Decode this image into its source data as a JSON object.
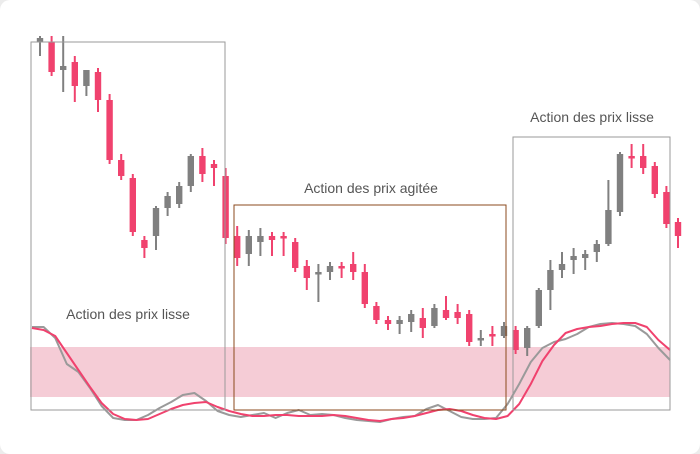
{
  "colors": {
    "background": "#ececec",
    "panel": "#ffffff",
    "up": "#808080",
    "down": "#f0426e",
    "zone_fill": "#f5ccd6",
    "box_gray": "#9a9a9a",
    "box_brown": "#8b4a1c",
    "fast_line": "#f0426e",
    "slow_line": "#9a9a9a",
    "label": "#555555"
  },
  "annotations": {
    "left_box_label": "Action des prix lisse",
    "middle_box_label": "Action des prix agitée",
    "right_box_label": "Action des prix lisse"
  },
  "chart_data": [
    {
      "type": "candlestick",
      "title": "",
      "xlabel": "",
      "ylabel": "",
      "grid": false,
      "ylim": [
        40,
        140
      ],
      "bars": [
        {
          "o": 132.5,
          "h": 134,
          "c": 133.5,
          "l": 129,
          "dir": "up"
        },
        {
          "o": 132.5,
          "h": 134,
          "c": 125,
          "l": 124,
          "dir": "down"
        },
        {
          "o": 125.5,
          "h": 134,
          "c": 126.5,
          "l": 120,
          "dir": "up"
        },
        {
          "o": 127.5,
          "h": 129,
          "c": 121.5,
          "l": 117.5,
          "dir": "down"
        },
        {
          "o": 121.5,
          "h": 125,
          "c": 125.5,
          "l": 119,
          "dir": "up"
        },
        {
          "o": 125,
          "h": 126,
          "c": 118,
          "l": 115,
          "dir": "down"
        },
        {
          "o": 118,
          "h": 119.5,
          "c": 103,
          "l": 102,
          "dir": "down"
        },
        {
          "o": 103,
          "h": 104.5,
          "c": 99,
          "l": 98,
          "dir": "down"
        },
        {
          "o": 98.5,
          "h": 99.5,
          "c": 85,
          "l": 84,
          "dir": "down"
        },
        {
          "o": 83,
          "h": 84,
          "c": 81,
          "l": 78.5,
          "dir": "down"
        },
        {
          "o": 84,
          "h": 91.5,
          "c": 91,
          "l": 80.5,
          "dir": "up"
        },
        {
          "o": 91,
          "h": 95,
          "c": 94,
          "l": 89,
          "dir": "up"
        },
        {
          "o": 92,
          "h": 97.5,
          "c": 96.5,
          "l": 91,
          "dir": "up"
        },
        {
          "o": 96.5,
          "h": 104.5,
          "c": 104,
          "l": 95,
          "dir": "up"
        },
        {
          "o": 104,
          "h": 106,
          "c": 99.5,
          "l": 97.5,
          "dir": "down"
        },
        {
          "o": 102,
          "h": 103,
          "c": 101,
          "l": 96.5,
          "dir": "down"
        },
        {
          "o": 99,
          "h": 101,
          "c": 83.5,
          "l": 82,
          "dir": "down"
        },
        {
          "o": 84,
          "h": 86.5,
          "c": 78.5,
          "l": 76.5,
          "dir": "down"
        },
        {
          "o": 79.5,
          "h": 85.5,
          "c": 84,
          "l": 76.5,
          "dir": "up"
        },
        {
          "o": 82.5,
          "h": 86,
          "c": 84,
          "l": 79,
          "dir": "up"
        },
        {
          "o": 84,
          "h": 85,
          "c": 83,
          "l": 79,
          "dir": "down"
        },
        {
          "o": 84,
          "h": 85,
          "c": 83.5,
          "l": 79,
          "dir": "down"
        },
        {
          "o": 82.5,
          "h": 83.5,
          "c": 76,
          "l": 75,
          "dir": "down"
        },
        {
          "o": 76.5,
          "h": 78,
          "c": 73.5,
          "l": 70.5,
          "dir": "down"
        },
        {
          "o": 74.5,
          "h": 77,
          "c": 75,
          "l": 67.5,
          "dir": "up"
        },
        {
          "o": 75,
          "h": 77.5,
          "c": 76.5,
          "l": 73,
          "dir": "up"
        },
        {
          "o": 76.5,
          "h": 77.5,
          "c": 76.5,
          "l": 73.5,
          "dir": "down"
        },
        {
          "o": 77,
          "h": 80,
          "c": 75,
          "l": 73,
          "dir": "down"
        },
        {
          "o": 75,
          "h": 77,
          "c": 67,
          "l": 66,
          "dir": "down"
        },
        {
          "o": 66.5,
          "h": 67.5,
          "c": 63,
          "l": 62,
          "dir": "down"
        },
        {
          "o": 63,
          "h": 64,
          "c": 62,
          "l": 60.5,
          "dir": "down"
        },
        {
          "o": 62,
          "h": 64,
          "c": 63,
          "l": 59.5,
          "dir": "up"
        },
        {
          "o": 62.5,
          "h": 65.5,
          "c": 64.5,
          "l": 60,
          "dir": "up"
        },
        {
          "o": 63.5,
          "h": 66,
          "c": 61,
          "l": 58.5,
          "dir": "down"
        },
        {
          "o": 61.5,
          "h": 67,
          "c": 66,
          "l": 61,
          "dir": "up"
        },
        {
          "o": 65.5,
          "h": 69,
          "c": 63.5,
          "l": 63,
          "dir": "down"
        },
        {
          "o": 65,
          "h": 67,
          "c": 63.5,
          "l": 62,
          "dir": "down"
        },
        {
          "o": 64.5,
          "h": 65.5,
          "c": 57.5,
          "l": 56.5,
          "dir": "down"
        },
        {
          "o": 58,
          "h": 60.5,
          "c": 58.5,
          "l": 56.5,
          "dir": "up"
        },
        {
          "o": 59.5,
          "h": 61.5,
          "c": 59,
          "l": 56.5,
          "dir": "down"
        },
        {
          "o": 59,
          "h": 62.5,
          "c": 61.5,
          "l": 58.5,
          "dir": "up"
        },
        {
          "o": 60.5,
          "h": 61.5,
          "c": 55.5,
          "l": 54.5,
          "dir": "down"
        },
        {
          "o": 56,
          "h": 61.5,
          "c": 61,
          "l": 54,
          "dir": "up"
        },
        {
          "o": 61.5,
          "h": 71,
          "c": 70.5,
          "l": 61,
          "dir": "up"
        },
        {
          "o": 70.5,
          "h": 78,
          "c": 75.5,
          "l": 65.5,
          "dir": "up"
        },
        {
          "o": 75.5,
          "h": 80,
          "c": 77,
          "l": 73.5,
          "dir": "up"
        },
        {
          "o": 78,
          "h": 81,
          "c": 79,
          "l": 74.5,
          "dir": "up"
        },
        {
          "o": 78.5,
          "h": 80.5,
          "c": 79.5,
          "l": 75.5,
          "dir": "up"
        },
        {
          "o": 80,
          "h": 83,
          "c": 82,
          "l": 77.5,
          "dir": "up"
        },
        {
          "o": 82,
          "h": 98,
          "c": 90.5,
          "l": 81.5,
          "dir": "up"
        },
        {
          "o": 90,
          "h": 105,
          "c": 104.5,
          "l": 89,
          "dir": "up"
        },
        {
          "o": 104,
          "h": 107,
          "c": 103.5,
          "l": 101,
          "dir": "down"
        },
        {
          "o": 104,
          "h": 107,
          "c": 101,
          "l": 99.5,
          "dir": "down"
        },
        {
          "o": 101.5,
          "h": 102.5,
          "c": 94.5,
          "l": 93.5,
          "dir": "down"
        },
        {
          "o": 95,
          "h": 96.5,
          "c": 87,
          "l": 86,
          "dir": "down"
        },
        {
          "o": 87.5,
          "h": 88.5,
          "c": 84,
          "l": 81,
          "dir": "down"
        }
      ]
    },
    {
      "type": "line",
      "title": "",
      "xlabel": "",
      "ylabel": "",
      "grid": false,
      "ylim": [
        0,
        100
      ],
      "band": [
        20,
        80
      ],
      "series": [
        {
          "color_key": "fast_line",
          "values": [
            94,
            92,
            86,
            69,
            52,
            35,
            19,
            8,
            3,
            2,
            3,
            8,
            13,
            17,
            19,
            20,
            15,
            11,
            8,
            6,
            6,
            7,
            7,
            6,
            6,
            6,
            7,
            6,
            4,
            2,
            1,
            3,
            4,
            6,
            9,
            12,
            13,
            11,
            7,
            4,
            3,
            6,
            18,
            38,
            61,
            77,
            89,
            93,
            95,
            96,
            98,
            99,
            99,
            95,
            82,
            72
          ]
        },
        {
          "color_key": "slow_line",
          "values": [
            95,
            95,
            84,
            58,
            50,
            34,
            16,
            4,
            2,
            2,
            7,
            14,
            20,
            27,
            29,
            21,
            11,
            7,
            5,
            7,
            9,
            4,
            9,
            12,
            7,
            8,
            7,
            4,
            2,
            1,
            0,
            3,
            5,
            6,
            13,
            17,
            11,
            5,
            3,
            3,
            4,
            18,
            38,
            60,
            74,
            80,
            83,
            88,
            95,
            98,
            99,
            98,
            96,
            88,
            74,
            62
          ]
        }
      ]
    }
  ]
}
